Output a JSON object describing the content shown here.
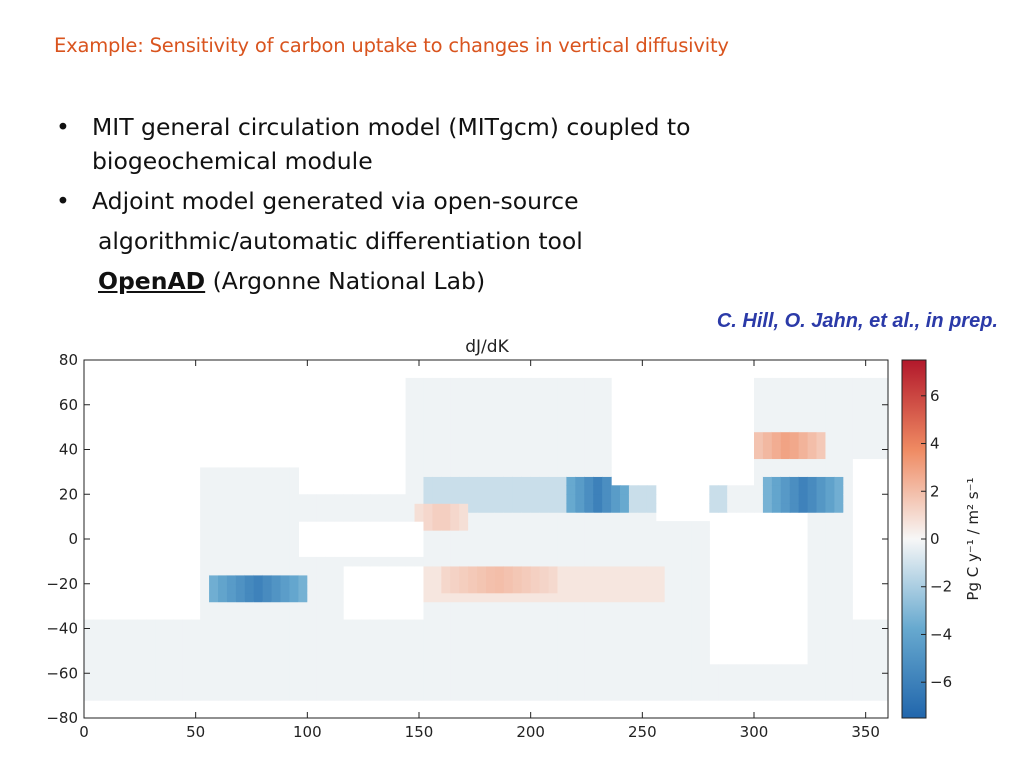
{
  "slide": {
    "title": "Example: Sensitivity of carbon uptake to changes in vertical diffusivity",
    "bullets": [
      {
        "lines": [
          "MIT general circulation model (MITgcm) coupled to",
          "biogeochemical module"
        ]
      },
      {
        "lines": [
          "Adjoint model generated via open-source"
        ]
      }
    ],
    "bullet2_cont": "algorithmic/automatic differentiation tool",
    "openad_link": "OpenAD",
    "openad_rest": " (Argonne National Lab)",
    "citation": "C. Hill, O. Jahn, et al., in prep."
  },
  "chart_data": {
    "type": "heatmap",
    "title": "dJ/dK",
    "xlabel": "",
    "ylabel": "",
    "xlim": [
      0,
      360
    ],
    "ylim": [
      -80,
      80
    ],
    "x_ticks": [
      0,
      50,
      100,
      150,
      200,
      250,
      300,
      350
    ],
    "y_ticks": [
      80,
      60,
      40,
      20,
      0,
      -20,
      -40,
      -60,
      -80
    ],
    "y_tick_labels": [
      "80",
      "60",
      "40",
      "20",
      "0",
      "−20",
      "−40",
      "−60",
      "−80"
    ],
    "colorbar": {
      "label": "Pg C y⁻¹ / m² s⁻¹",
      "range": [
        -7.5,
        7.5
      ],
      "ticks": [
        6,
        4,
        2,
        0,
        -2,
        -4,
        -6
      ],
      "tick_labels": [
        "6",
        "4",
        "2",
        "0",
        "−2",
        "−4",
        "−6"
      ],
      "colormap": "RdBu_r"
    },
    "notable_features": [
      {
        "lon": [
          215,
          245
        ],
        "lat": [
          15,
          25
        ],
        "value": -6
      },
      {
        "lon": [
          305,
          340
        ],
        "lat": [
          15,
          25
        ],
        "value": -6
      },
      {
        "lon": [
          55,
          100
        ],
        "lat": [
          -25,
          -20
        ],
        "value": -6
      },
      {
        "lon": [
          300,
          330
        ],
        "lat": [
          40,
          45
        ],
        "value": 3
      },
      {
        "lon": [
          160,
          210
        ],
        "lat": [
          -20,
          -15
        ],
        "value": 2
      },
      {
        "lon": [
          150,
          170
        ],
        "lat": [
          8,
          12
        ],
        "value": 1.5
      }
    ]
  }
}
